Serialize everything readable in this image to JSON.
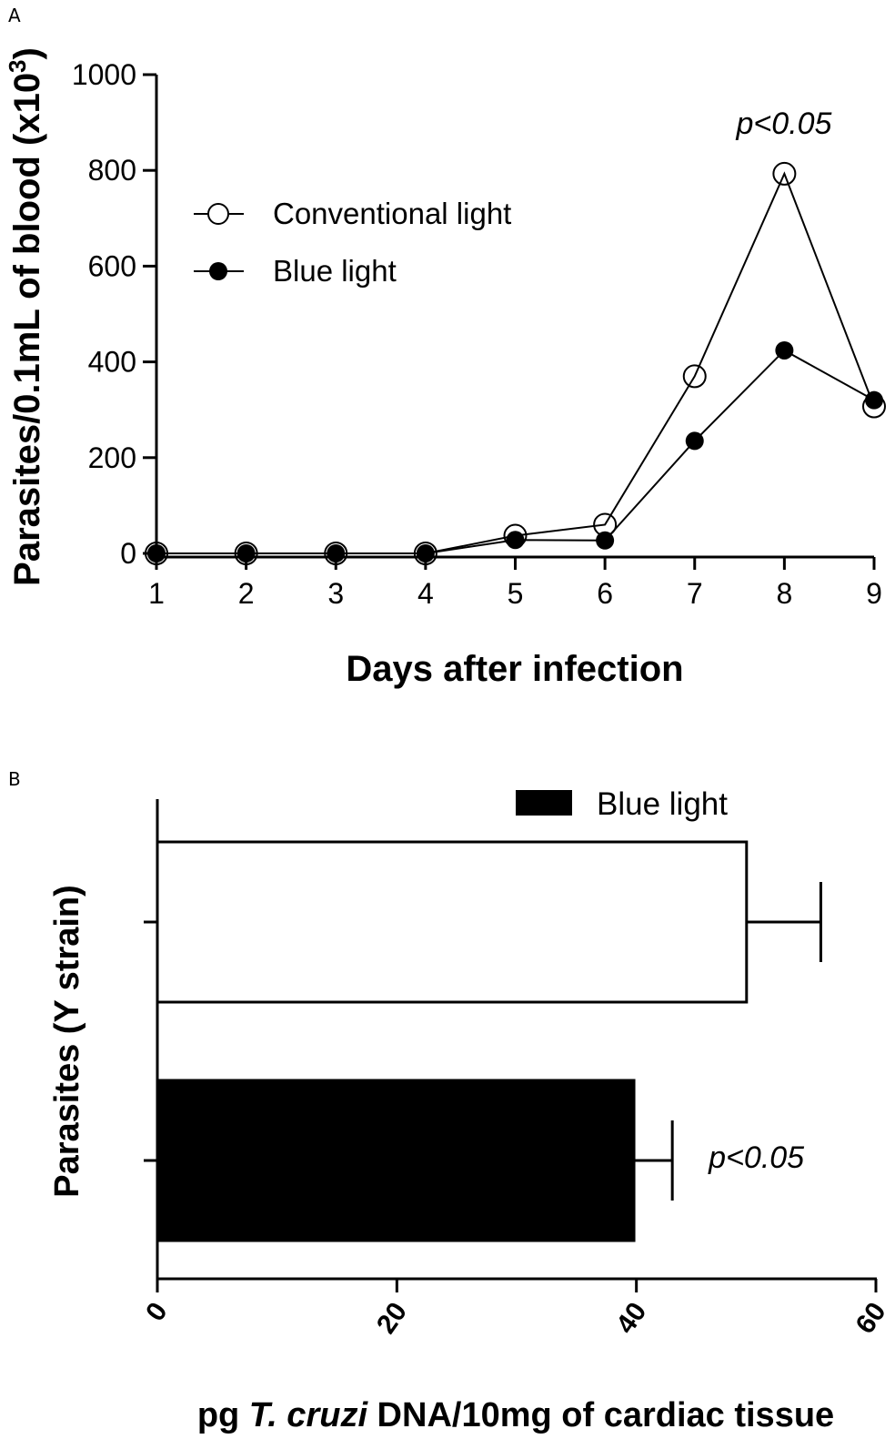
{
  "panels": {
    "a": {
      "label": "A"
    },
    "b": {
      "label": "B"
    }
  },
  "chart_data": [
    {
      "type": "line",
      "panel": "A",
      "xlabel": "Days after infection",
      "ylabel_main": "Parasites/0.1mL of blood (x10",
      "ylabel_sup": "3",
      "ylabel_end": ")",
      "x": [
        1,
        2,
        3,
        4,
        5,
        6,
        7,
        8,
        9
      ],
      "x_ticks": [
        "1",
        "2",
        "3",
        "4",
        "5",
        "6",
        "7",
        "8",
        "9"
      ],
      "xlim": [
        1,
        9
      ],
      "ylim": [
        0,
        1000
      ],
      "y_ticks": [
        "0",
        "200",
        "400",
        "600",
        "800",
        "1000"
      ],
      "grid": false,
      "legend_position": "upper-left",
      "series": [
        {
          "name": "Conventional light",
          "marker": "open-circle",
          "color": "#000000",
          "values": [
            0,
            0,
            0,
            0,
            37,
            60,
            370,
            793,
            307
          ]
        },
        {
          "name": "Blue light",
          "marker": "filled-circle",
          "color": "#000000",
          "values": [
            0,
            0,
            0,
            0,
            28,
            27,
            235,
            424,
            320
          ]
        }
      ],
      "annotation": {
        "text": "p<0.05",
        "at_x": 8
      }
    },
    {
      "type": "bar",
      "panel": "B",
      "orientation": "horizontal",
      "ylabel": "Parasites (Y strain)",
      "xlabel_pre": "pg ",
      "xlabel_italic": "T. cruzi",
      "xlabel_post": " DNA/10mg of cardiac tissue",
      "xlim": [
        0,
        60
      ],
      "x_ticks": [
        "0",
        "20",
        "40",
        "60"
      ],
      "grid": false,
      "legend_position": "top",
      "legend": [
        {
          "name": "Blue light",
          "color": "#000000"
        }
      ],
      "bars": [
        {
          "fill": "#ffffff",
          "value": 49.2,
          "error": 6.2
        },
        {
          "fill": "#000000",
          "value": 39.8,
          "error": 3.2,
          "annotation": "p<0.05"
        }
      ]
    }
  ]
}
